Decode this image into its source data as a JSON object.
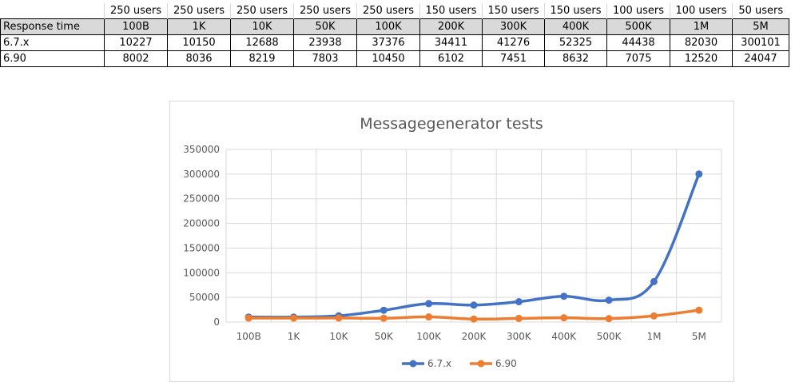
{
  "table": {
    "users_row": [
      "",
      "250 users",
      "250 users",
      "250 users",
      "250 users",
      "250 users",
      "150 users",
      "150 users",
      "150 users",
      "100 users",
      "100 users",
      "50 users"
    ],
    "header_row": [
      "Response time",
      "100B",
      "1K",
      "10K",
      "50K",
      "100K",
      "200K",
      "300K",
      "400K",
      "500K",
      "1M",
      "5M"
    ],
    "rows": [
      {
        "label": "6.7.x",
        "values": [
          "10227",
          "10150",
          "12688",
          "23938",
          "37376",
          "34411",
          "41276",
          "52325",
          "44438",
          "82030",
          "300101"
        ]
      },
      {
        "label": "6.90",
        "values": [
          "8002",
          "8036",
          "8219",
          "7803",
          "10450",
          "6102",
          "7451",
          "8632",
          "7075",
          "12520",
          "24047"
        ]
      }
    ]
  },
  "chart_data": {
    "type": "line",
    "title": "Messagegenerator tests",
    "categories": [
      "100B",
      "1K",
      "10K",
      "50K",
      "100K",
      "200K",
      "300K",
      "400K",
      "500K",
      "1M",
      "5M"
    ],
    "series": [
      {
        "name": "6.7.x",
        "color": "#4472c4",
        "values": [
          10227,
          10150,
          12688,
          23938,
          37376,
          34411,
          41276,
          52325,
          44438,
          82030,
          300101
        ]
      },
      {
        "name": "6.90",
        "color": "#ed7d31",
        "values": [
          8002,
          8036,
          8219,
          7803,
          10450,
          6102,
          7451,
          8632,
          7075,
          12520,
          24047
        ]
      }
    ],
    "ylim": [
      0,
      350000
    ],
    "yticks": [
      0,
      50000,
      100000,
      150000,
      200000,
      250000,
      300000,
      350000
    ],
    "ytick_labels": [
      "0",
      "50000",
      "100000",
      "150000",
      "200000",
      "250000",
      "300000",
      "350000"
    ],
    "grid": true,
    "legend": "bottom",
    "xlabel": "",
    "ylabel": ""
  }
}
